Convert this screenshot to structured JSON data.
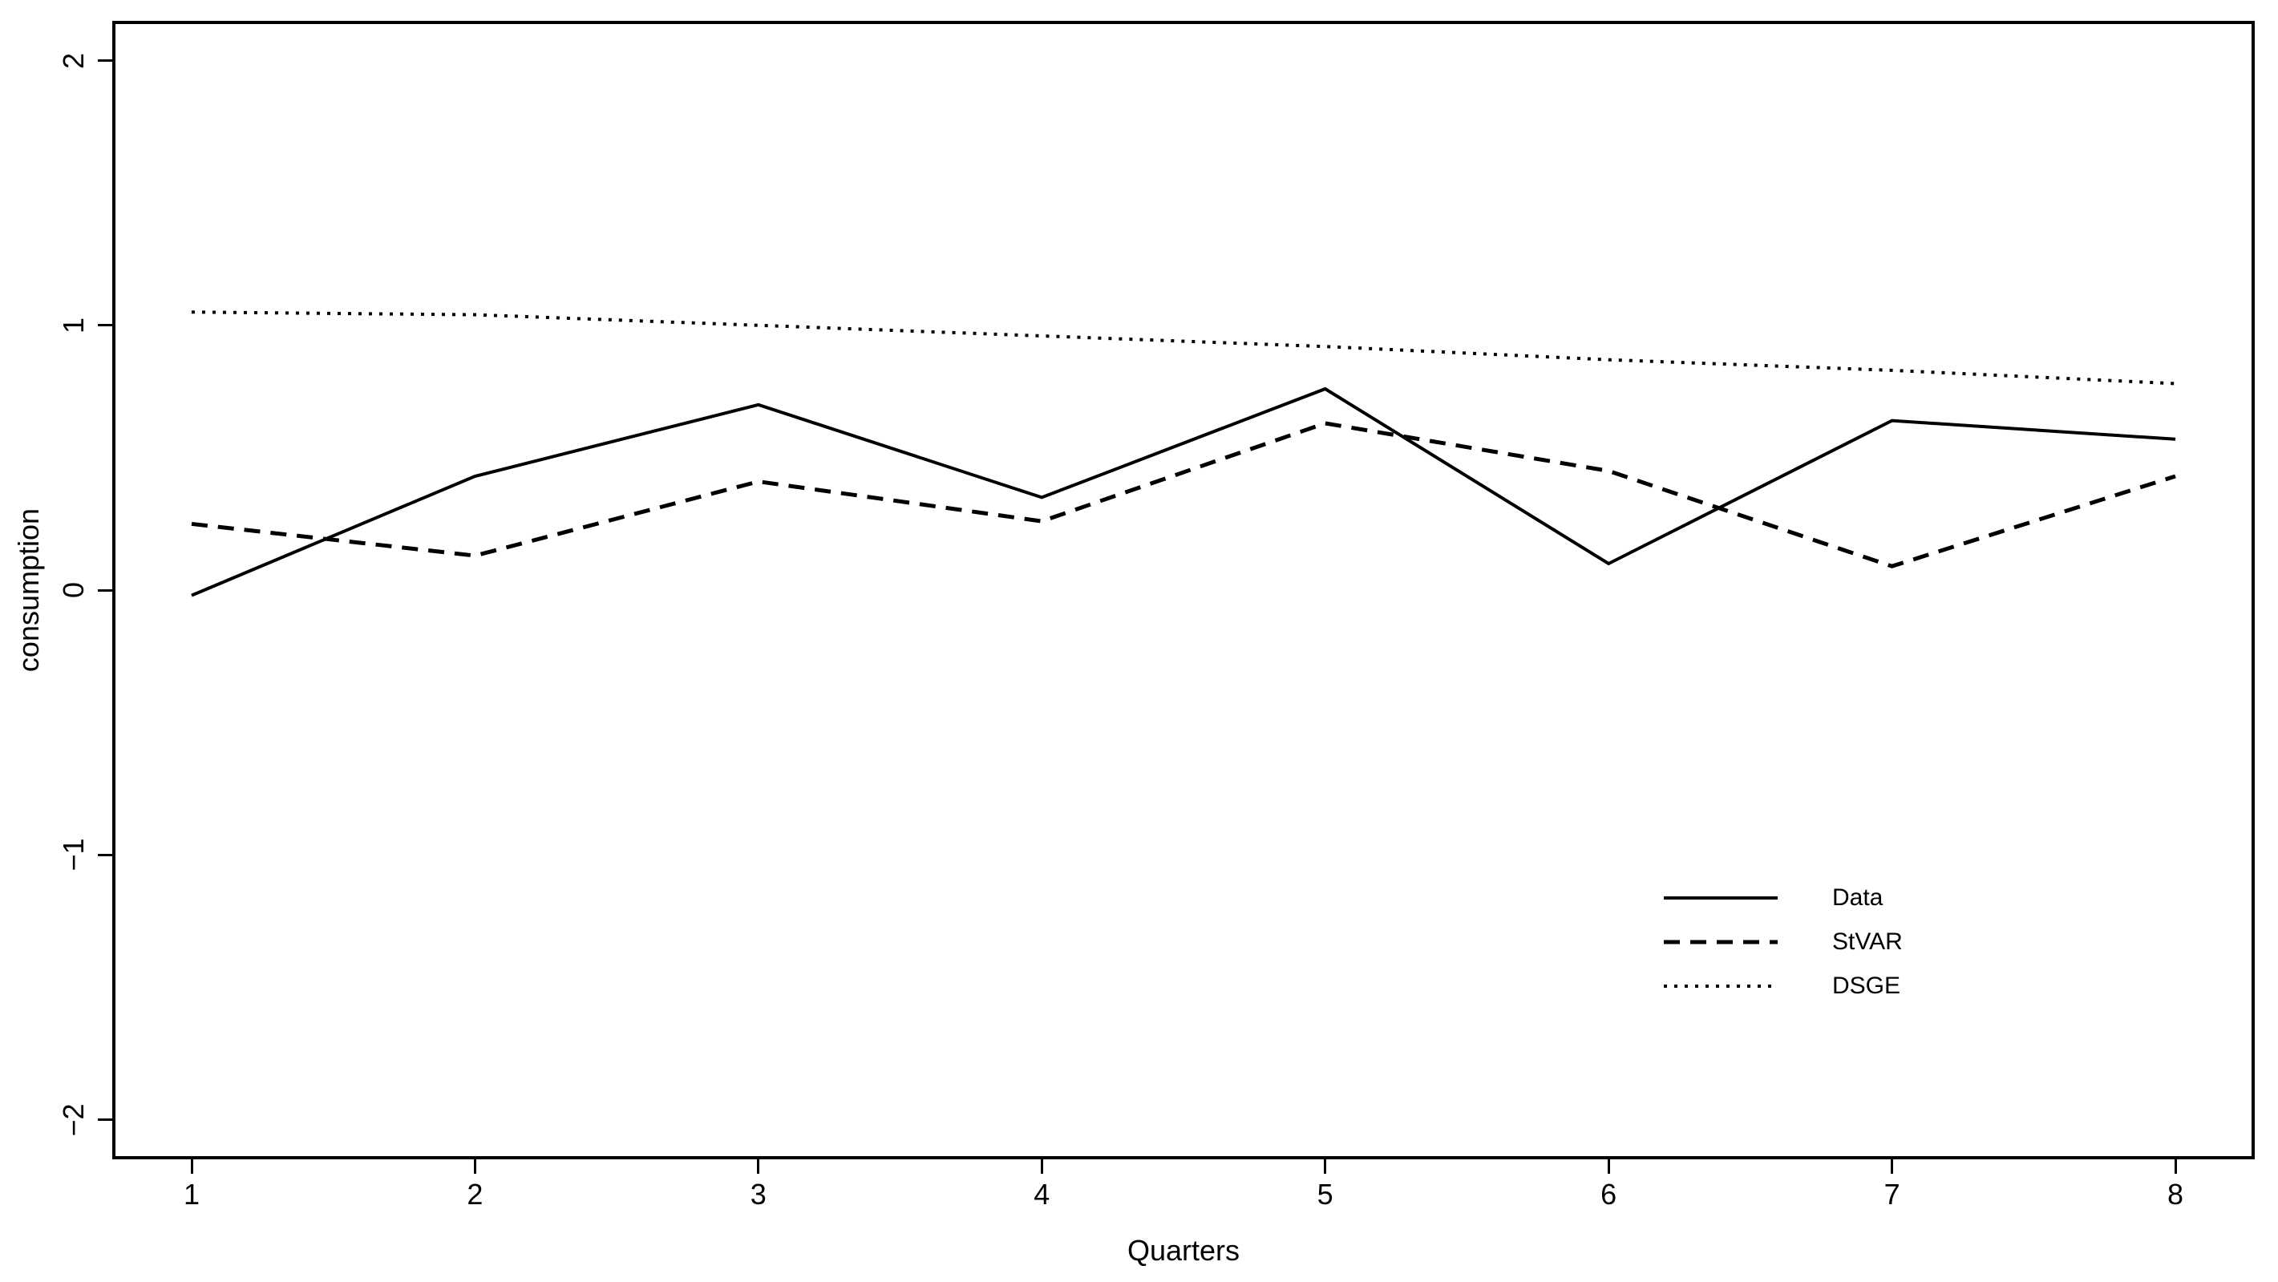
{
  "figure": {
    "background": "#ffffff"
  },
  "chart_data": {
    "type": "line",
    "title": "",
    "xlabel": "Quarters",
    "ylabel": "consumption",
    "x": [
      1,
      2,
      3,
      4,
      5,
      6,
      7,
      8
    ],
    "series": [
      {
        "name": "Data",
        "line_style": "solid",
        "values": [
          -0.02,
          0.43,
          0.7,
          0.35,
          0.76,
          0.1,
          0.64,
          0.57
        ]
      },
      {
        "name": "StVAR",
        "line_style": "dashed",
        "values": [
          0.25,
          0.13,
          0.41,
          0.26,
          0.63,
          0.45,
          0.09,
          0.43
        ]
      },
      {
        "name": "DSGE",
        "line_style": "dotted",
        "values": [
          1.05,
          1.04,
          1.0,
          0.96,
          0.92,
          0.87,
          0.83,
          0.78
        ]
      }
    ],
    "xticks": [
      1,
      2,
      3,
      4,
      5,
      6,
      7,
      8
    ],
    "yticks": [
      -2,
      -1,
      0,
      1,
      2
    ],
    "xlim": [
      0.72,
      8.28
    ],
    "ylim": [
      -2.15,
      2.15
    ],
    "grid": false,
    "line_color": "#000000",
    "legend": {
      "position": "inside-right-middle",
      "entries": [
        "Data",
        "StVAR",
        "DSGE"
      ]
    }
  }
}
